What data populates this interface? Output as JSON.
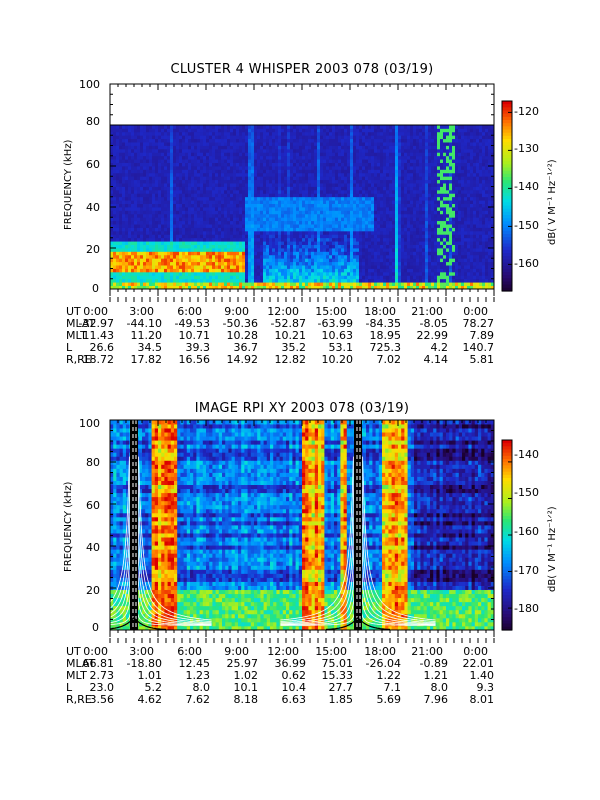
{
  "panels": [
    {
      "title": "CLUSTER 4 WHISPER 2003 078 (03/19)",
      "ylabel": "FREQUENCY (kHz)",
      "ylim": [
        0,
        100
      ],
      "yticks": [
        "0",
        "20",
        "40",
        "60",
        "80",
        "100"
      ],
      "colorbar": {
        "label": "dB( V M⁻¹ Hz⁻¹ᐟ²)",
        "range": [
          -167,
          -117
        ],
        "ticks": [
          "-120",
          "-130",
          "-140",
          "-150",
          "-160"
        ],
        "tick_values": [
          -120,
          -130,
          -140,
          -150,
          -160
        ]
      },
      "data_ceiling_khz": 80,
      "table": {
        "labels": [
          "UT",
          "MLAT",
          "MLT",
          "L",
          "R,RE"
        ],
        "rows": [
          [
            "0:00",
            "3:00",
            "6:00",
            "9:00",
            "12:00",
            "15:00",
            "18:00",
            "21:00",
            "0:00"
          ],
          [
            "-32.97",
            "-44.10",
            "-49.53",
            "-50.36",
            "-52.87",
            "-63.99",
            "-84.35",
            "-8.05",
            "78.27"
          ],
          [
            "11.43",
            "11.20",
            "10.71",
            "10.28",
            "10.21",
            "10.63",
            "18.95",
            "22.99",
            "7.89"
          ],
          [
            "26.6",
            "34.5",
            "39.3",
            "36.7",
            "35.2",
            "53.1",
            "725.3",
            "4.2",
            "140.7"
          ],
          [
            "18.72",
            "17.82",
            "16.56",
            "14.92",
            "12.82",
            "10.20",
            "7.02",
            "4.14",
            "5.81"
          ]
        ]
      }
    },
    {
      "title": "IMAGE RPI XY 2003 078 (03/19)",
      "ylabel": "FREQUENCY (kHz)",
      "ylim": [
        0,
        100
      ],
      "yticks": [
        "0",
        "20",
        "40",
        "60",
        "80",
        "100"
      ],
      "colorbar": {
        "label": "dB( V M⁻¹ Hz⁻¹ᐟ²)",
        "range": [
          -186,
          -134
        ],
        "ticks": [
          "-140",
          "-150",
          "-160",
          "-170",
          "-180"
        ],
        "tick_values": [
          -140,
          -150,
          -160,
          -170,
          -180
        ]
      },
      "table": {
        "labels": [
          "UT",
          "MLAT",
          "MLT",
          "L",
          "R,RE"
        ],
        "rows": [
          [
            "0:00",
            "3:00",
            "6:00",
            "9:00",
            "12:00",
            "15:00",
            "18:00",
            "21:00",
            "0:00"
          ],
          [
            "66.81",
            "-18.80",
            "12.45",
            "25.97",
            "36.99",
            "75.01",
            "-26.04",
            "-0.89",
            "22.01"
          ],
          [
            "2.73",
            "1.01",
            "1.23",
            "1.02",
            "0.62",
            "15.33",
            "1.22",
            "1.21",
            "1.40"
          ],
          [
            "23.0",
            "5.2",
            "8.0",
            "10.1",
            "10.4",
            "27.7",
            "7.1",
            "8.0",
            "9.3"
          ],
          [
            "3.56",
            "4.62",
            "7.62",
            "8.18",
            "6.63",
            "1.85",
            "5.69",
            "7.96",
            "8.01"
          ]
        ]
      }
    }
  ],
  "chart_data": [
    {
      "type": "heatmap",
      "title": "CLUSTER 4 WHISPER 2003 078 (03/19)",
      "xlabel": "UT",
      "ylabel": "FREQUENCY (kHz)",
      "xlim_hours": [
        0,
        24
      ],
      "ylim": [
        0,
        100
      ],
      "zlabel": "dB( V M⁻¹ Hz⁻¹ᐟ²)",
      "zlim": [
        -167,
        -117
      ],
      "features": [
        {
          "name": "low-frequency band",
          "ut_range": [
            0,
            8.5
          ],
          "freq_range": [
            8,
            18
          ],
          "level_db": -122
        },
        {
          "name": "broadband emission",
          "ut_range": [
            9.5,
            15.5
          ],
          "freq_range": [
            0,
            28
          ],
          "level_db": -140
        }
      ]
    },
    {
      "type": "heatmap",
      "title": "IMAGE RPI XY 2003 078 (03/19)",
      "xlabel": "UT",
      "ylabel": "FREQUENCY (kHz)",
      "xlim_hours": [
        0,
        24
      ],
      "ylim": [
        0,
        100
      ],
      "zlabel": "dB( V M⁻¹ Hz⁻¹ᐟ²)",
      "zlim": [
        -186,
        -134
      ],
      "features": [
        {
          "name": "intense emission",
          "ut_range": [
            1.2,
            1.8
          ],
          "freq_range": [
            0,
            100
          ],
          "level_db": -134
        },
        {
          "name": "intense emission",
          "ut_range": [
            15.2,
            15.8
          ],
          "freq_range": [
            0,
            100
          ],
          "level_db": -134
        }
      ]
    }
  ]
}
